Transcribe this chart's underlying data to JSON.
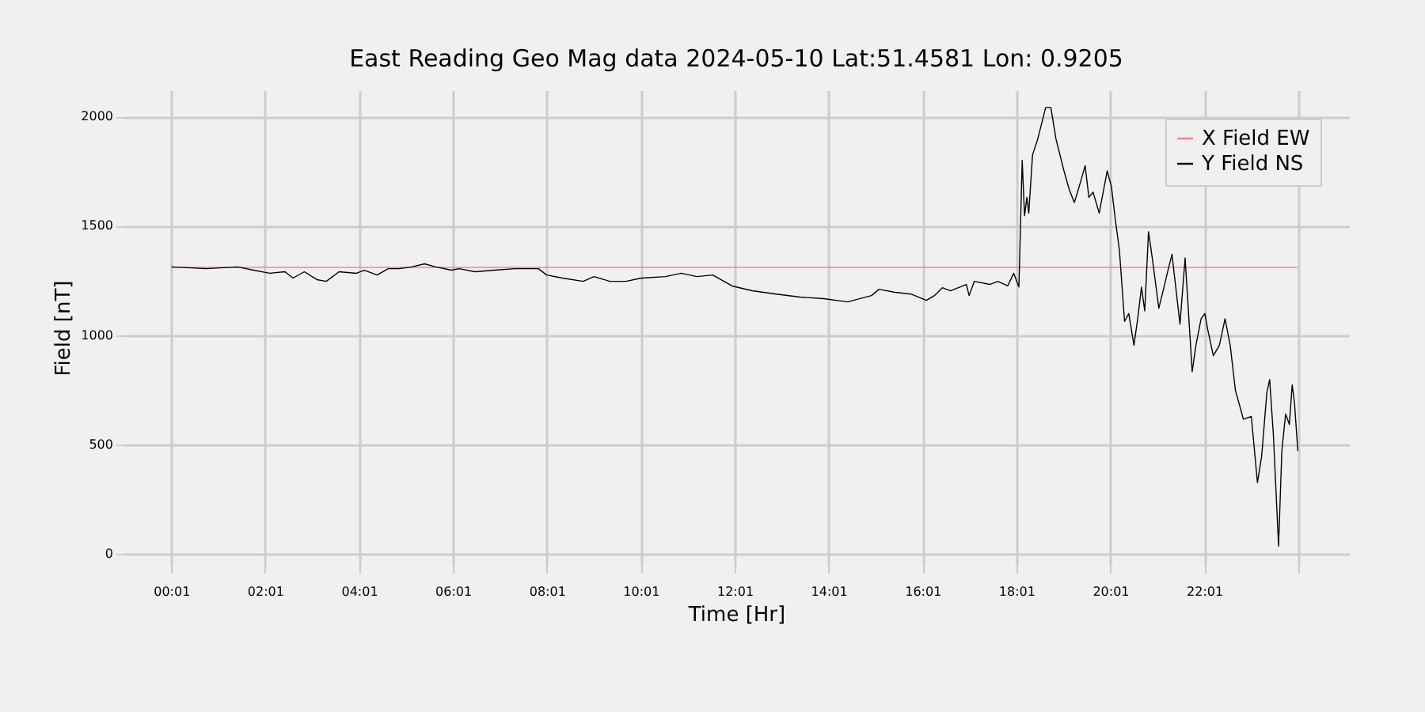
{
  "chart_data": {
    "type": "line",
    "title": "East Reading Geo Mag data        2024-05-10      Lat:51.4581  Lon: 0.9205",
    "xlabel": "Time  [Hr]",
    "ylabel": "Field  [nT]",
    "xlim": [
      -1.0,
      25.1
    ],
    "ylim": [
      -50,
      2120
    ],
    "xticks": [
      {
        "value": 0.0167,
        "label": "00:01"
      },
      {
        "value": 2.0167,
        "label": "02:01"
      },
      {
        "value": 4.0167,
        "label": "04:01"
      },
      {
        "value": 6.0167,
        "label": "06:01"
      },
      {
        "value": 8.0167,
        "label": "08:01"
      },
      {
        "value": 10.0167,
        "label": "10:01"
      },
      {
        "value": 12.0167,
        "label": "12:01"
      },
      {
        "value": 14.0167,
        "label": "14:01"
      },
      {
        "value": 16.0167,
        "label": "16:01"
      },
      {
        "value": 18.0167,
        "label": "18:01"
      },
      {
        "value": 20.0167,
        "label": "20:01"
      },
      {
        "value": 22.0167,
        "label": "22:01"
      },
      {
        "value": 24.0167,
        "label": null
      }
    ],
    "yticks": [
      0,
      500,
      1000,
      1500,
      2000
    ],
    "grid": true,
    "legend": "top right",
    "series": [
      {
        "name": "X Field EW",
        "color": "#ff8080",
        "x": [
          0.02,
          24.01
        ],
        "values": [
          1310,
          1310
        ]
      },
      {
        "name": "Y Field NS",
        "color": "#000000",
        "x": [
          0.02,
          0.76,
          1.43,
          1.77,
          2.11,
          2.44,
          2.61,
          2.85,
          3.12,
          3.32,
          3.59,
          3.96,
          4.13,
          4.4,
          4.64,
          4.87,
          5.14,
          5.41,
          5.65,
          5.98,
          6.15,
          6.49,
          6.9,
          7.34,
          7.84,
          8.01,
          8.35,
          8.79,
          9.02,
          9.36,
          9.7,
          10.03,
          10.54,
          10.88,
          11.21,
          11.55,
          11.96,
          12.39,
          12.9,
          13.41,
          13.91,
          14.42,
          14.93,
          15.09,
          15.43,
          15.77,
          16.1,
          16.27,
          16.44,
          16.61,
          16.95,
          17.01,
          17.12,
          17.45,
          17.62,
          17.83,
          17.96,
          18.07,
          18.14,
          18.19,
          18.24,
          18.28,
          18.36,
          18.47,
          18.64,
          18.75,
          18.86,
          19.03,
          19.14,
          19.25,
          19.37,
          19.48,
          19.56,
          19.65,
          19.78,
          19.95,
          20.04,
          20.12,
          20.21,
          20.32,
          20.41,
          20.52,
          20.6,
          20.68,
          20.75,
          20.83,
          20.91,
          21.05,
          21.16,
          21.24,
          21.33,
          21.5,
          21.61,
          21.76,
          21.84,
          21.95,
          22.03,
          22.09,
          22.21,
          22.34,
          22.46,
          22.57,
          22.68,
          22.85,
          23.02,
          23.15,
          23.24,
          23.35,
          23.41,
          23.49,
          23.6,
          23.67,
          23.75,
          23.83,
          23.89,
          23.94,
          24.01
        ],
        "values": [
          1312,
          1304,
          1312,
          1297,
          1283,
          1290,
          1261,
          1290,
          1254,
          1246,
          1290,
          1283,
          1297,
          1275,
          1304,
          1304,
          1312,
          1326,
          1312,
          1297,
          1304,
          1290,
          1297,
          1304,
          1304,
          1275,
          1261,
          1246,
          1268,
          1246,
          1246,
          1261,
          1268,
          1283,
          1268,
          1275,
          1225,
          1203,
          1188,
          1174,
          1167,
          1152,
          1181,
          1210,
          1196,
          1188,
          1159,
          1181,
          1217,
          1203,
          1232,
          1181,
          1246,
          1232,
          1246,
          1225,
          1283,
          1220,
          1799,
          1546,
          1630,
          1558,
          1824,
          1896,
          2041,
          2041,
          1896,
          1751,
          1667,
          1606,
          1691,
          1775,
          1630,
          1654,
          1558,
          1751,
          1679,
          1534,
          1389,
          1063,
          1099,
          954,
          1075,
          1220,
          1111,
          1473,
          1353,
          1123,
          1220,
          1292,
          1370,
          1051,
          1353,
          833,
          954,
          1075,
          1099,
          1027,
          906,
          954,
          1075,
          954,
          749,
          616,
          628,
          326,
          447,
          737,
          797,
          543,
          36,
          471,
          640,
          592,
          773,
          688,
          471
        ]
      }
    ]
  }
}
